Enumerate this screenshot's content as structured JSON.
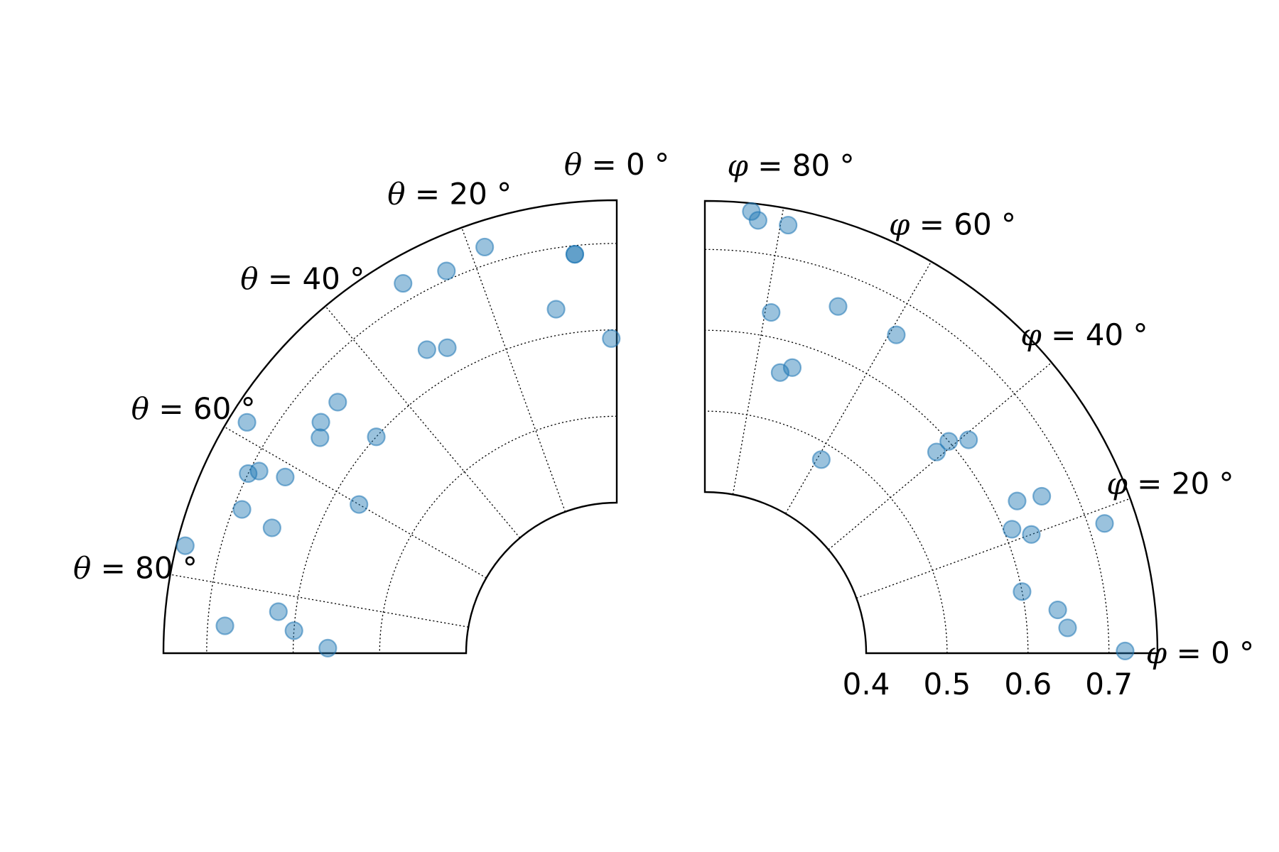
{
  "chart_data": [
    {
      "type": "scatter",
      "projection": "polar-wedge",
      "angle_symbol": "θ",
      "angle_zero": "north",
      "angle_direction": "counterclockwise",
      "angle_range_deg": [
        0,
        90
      ],
      "radius_range": [
        0.4,
        0.75
      ],
      "angle_gridlines_deg": [
        0,
        20,
        40,
        60,
        80
      ],
      "radius_gridlines": [
        0.5,
        0.6,
        0.7
      ],
      "grid": true,
      "angle_tick_labels": [
        {
          "sym": "θ",
          "text": " = 0 °",
          "deg": 0
        },
        {
          "sym": "θ",
          "text": " = 20 °",
          "deg": 20
        },
        {
          "sym": "θ",
          "text": " = 40 °",
          "deg": 40
        },
        {
          "sym": "θ",
          "text": " = 60 °",
          "deg": 60
        },
        {
          "sym": "θ",
          "text": " = 80 °",
          "deg": 80
        }
      ],
      "radius_tick_labels": [],
      "marker_color": "#1f77b4",
      "marker_alpha": 0.45,
      "points": [
        {
          "theta": 30,
          "r": 0.72
        },
        {
          "theta": 24,
          "r": 0.71
        },
        {
          "theta": 18,
          "r": 0.72
        },
        {
          "theta": 6,
          "r": 0.69
        },
        {
          "theta": 6,
          "r": 0.69
        },
        {
          "theta": 10,
          "r": 0.63
        },
        {
          "theta": 32,
          "r": 0.64
        },
        {
          "theta": 29,
          "r": 0.63
        },
        {
          "theta": 1,
          "r": 0.59
        },
        {
          "theta": 58,
          "r": 0.73
        },
        {
          "theta": 48,
          "r": 0.66
        },
        {
          "theta": 52,
          "r": 0.66
        },
        {
          "theta": 54,
          "r": 0.65
        },
        {
          "theta": 48,
          "r": 0.6
        },
        {
          "theta": 63,
          "r": 0.69
        },
        {
          "theta": 64,
          "r": 0.7
        },
        {
          "theta": 62,
          "r": 0.66
        },
        {
          "theta": 69,
          "r": 0.69
        },
        {
          "theta": 70,
          "r": 0.65
        },
        {
          "theta": 60,
          "r": 0.57
        },
        {
          "theta": 76,
          "r": 0.74
        },
        {
          "theta": 83,
          "r": 0.62
        },
        {
          "theta": 86,
          "r": 0.68
        },
        {
          "theta": 86,
          "r": 0.6
        },
        {
          "theta": 89,
          "r": 0.56
        }
      ]
    },
    {
      "type": "scatter",
      "projection": "polar-wedge",
      "angle_symbol": "φ",
      "angle_zero": "east",
      "angle_direction": "counterclockwise",
      "angle_range_deg": [
        0,
        90
      ],
      "radius_range": [
        0.4,
        0.76
      ],
      "angle_gridlines_deg": [
        0,
        20,
        40,
        60,
        80
      ],
      "radius_gridlines": [
        0.5,
        0.6,
        0.7
      ],
      "grid": true,
      "angle_tick_labels": [
        {
          "sym": "φ",
          "text": " = 0 °",
          "deg": 0
        },
        {
          "sym": "φ",
          "text": " = 20 °",
          "deg": 20
        },
        {
          "sym": "φ",
          "text": " = 40 °",
          "deg": 40
        },
        {
          "sym": "φ",
          "text": " = 60 °",
          "deg": 60
        },
        {
          "sym": "φ",
          "text": " = 80 °",
          "deg": 80
        }
      ],
      "radius_tick_labels": [
        "0.4",
        "0.5",
        "0.6",
        "0.7"
      ],
      "radius_tick_values": [
        0.4,
        0.5,
        0.6,
        0.7
      ],
      "marker_color": "#1f77b4",
      "marker_alpha": 0.45,
      "points": [
        {
          "phi": 84,
          "r": 0.75
        },
        {
          "phi": 83,
          "r": 0.74
        },
        {
          "phi": 79,
          "r": 0.74
        },
        {
          "phi": 69,
          "r": 0.66
        },
        {
          "phi": 79,
          "r": 0.63
        },
        {
          "phi": 59,
          "r": 0.66
        },
        {
          "phi": 41,
          "r": 0.6
        },
        {
          "phi": 39,
          "r": 0.62
        },
        {
          "phi": 41,
          "r": 0.58
        },
        {
          "phi": 73,
          "r": 0.57
        },
        {
          "phi": 75,
          "r": 0.56
        },
        {
          "phi": 59,
          "r": 0.48
        },
        {
          "phi": 25,
          "r": 0.66
        },
        {
          "phi": 26,
          "r": 0.63
        },
        {
          "phi": 22,
          "r": 0.61
        },
        {
          "phi": 20,
          "r": 0.63
        },
        {
          "phi": 18,
          "r": 0.72
        },
        {
          "phi": 11,
          "r": 0.6
        },
        {
          "phi": 7,
          "r": 0.64
        },
        {
          "phi": 4,
          "r": 0.65
        },
        {
          "phi": 0.3,
          "r": 0.72
        }
      ]
    }
  ]
}
